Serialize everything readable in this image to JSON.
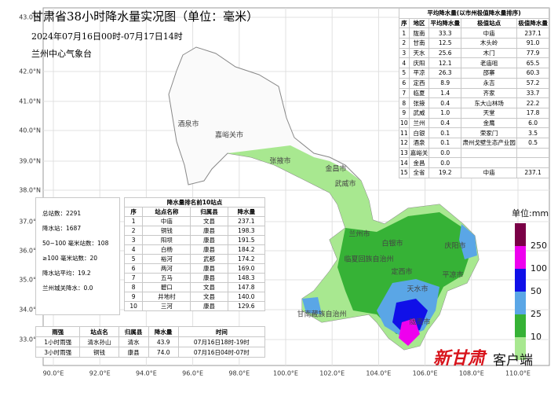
{
  "title": "甘肃省38小时降水量实况图（单位：毫米）",
  "subtitle": "2024年07月16日00时-07月17日14时",
  "issuer": "兰州中心气象台",
  "latitude_labels": [
    "43.0°N",
    "42.0°N",
    "41.0°N",
    "40.0°N",
    "39.0°N",
    "38.0°N",
    "37.0°N",
    "36.0°N",
    "35.0°N",
    "34.0°N",
    "33.0°N"
  ],
  "longitude_labels": [
    "90.0°E",
    "92.0°E",
    "94.0°E",
    "96.0°E",
    "98.0°E",
    "100.0°E",
    "102.0°E",
    "104.0°E",
    "106.0°E",
    "108.0°E",
    "110.0°E"
  ],
  "place_labels": [
    "酒泉市",
    "嘉峪关市",
    "张掖市",
    "金昌市",
    "武威市",
    "兰州市",
    "白银市",
    "庆阳市",
    "平凉市",
    "定西市",
    "临夏回族自治州",
    "甘南藏族自治州",
    "天水市",
    "陇南市"
  ],
  "region_table": {
    "title": "平均降水量(以市州极值降水量排序)",
    "header": [
      "序",
      "地区",
      "平均降水量",
      "极值站点",
      "极值降水量"
    ],
    "rows": [
      [
        "1",
        "陇南",
        "33.3",
        "中庙",
        "237.1"
      ],
      [
        "2",
        "甘南",
        "12.5",
        "木头岭",
        "91.0"
      ],
      [
        "3",
        "天水",
        "25.6",
        "木门",
        "77.9"
      ],
      [
        "4",
        "庆阳",
        "12.1",
        "老庙咀",
        "65.5"
      ],
      [
        "5",
        "平凉",
        "26.3",
        "邵寨",
        "60.3"
      ],
      [
        "6",
        "定西",
        "8.9",
        "永吉",
        "57.2"
      ],
      [
        "7",
        "临夏",
        "1.4",
        "齐家",
        "33.7"
      ],
      [
        "8",
        "张掖",
        "0.4",
        "东大山林场",
        "22.2"
      ],
      [
        "9",
        "武威",
        "1.0",
        "天堂",
        "17.8"
      ],
      [
        "10",
        "兰州",
        "0.4",
        "金鹰",
        "6.0"
      ],
      [
        "11",
        "白银",
        "0.1",
        "荣家门",
        "3.5"
      ],
      [
        "12",
        "酒泉",
        "0.1",
        "肃州戈壁生态产业园",
        "0.5"
      ],
      [
        "13",
        "嘉峪关",
        "0.0"
      ],
      [
        "14",
        "金昌",
        "0.0"
      ],
      [
        "15",
        "全省",
        "19.2",
        "中庙",
        "237.1"
      ]
    ]
  },
  "ranking_table": {
    "title": "降水量排名前10站点",
    "header": [
      "序",
      "站点名称",
      "归属县",
      "降水量"
    ],
    "rows": [
      [
        "1",
        "中庙",
        "文县",
        "237.1"
      ],
      [
        "2",
        "铜钱",
        "康县",
        "198.3"
      ],
      [
        "3",
        "阳坝",
        "康县",
        "191.5"
      ],
      [
        "4",
        "白杨",
        "康县",
        "184.2"
      ],
      [
        "5",
        "裕河",
        "武都",
        "174.2"
      ],
      [
        "6",
        "两河",
        "康县",
        "169.0"
      ],
      [
        "7",
        "五马",
        "康县",
        "148.3"
      ],
      [
        "8",
        "碧口",
        "文县",
        "147.8"
      ],
      [
        "9",
        "井地村",
        "文县",
        "140.0"
      ],
      [
        "10",
        "三河",
        "康县",
        "129.6"
      ]
    ]
  },
  "station_stats": [
    "总站数：2291",
    "降水站：1687",
    "50~100 毫米站数：108",
    "≥100 毫米站数：20",
    "降水站平均：19.2",
    "兰州城关降水：0.0"
  ],
  "intensity_table": {
    "header": [
      "雨强",
      "站点名",
      "归属县",
      "降水量",
      "时间"
    ],
    "rows": [
      [
        "1小时雨强",
        "清水孙山",
        "清水",
        "43.9",
        "07月16日18时-19时"
      ],
      [
        "3小时雨强",
        "铜钱",
        "康县",
        "74.0",
        "07月16日04时-07时"
      ]
    ]
  },
  "legend": {
    "title": "单位:mm",
    "labels": [
      "250",
      "100",
      "50",
      "25",
      "10"
    ],
    "colors": [
      "#7a0046",
      "#ee00ee",
      "#1010e8",
      "#5aa6e6",
      "#36b236",
      "#a8e890"
    ]
  },
  "watermark_brand": "新甘肃",
  "watermark_suffix": "客户端"
}
